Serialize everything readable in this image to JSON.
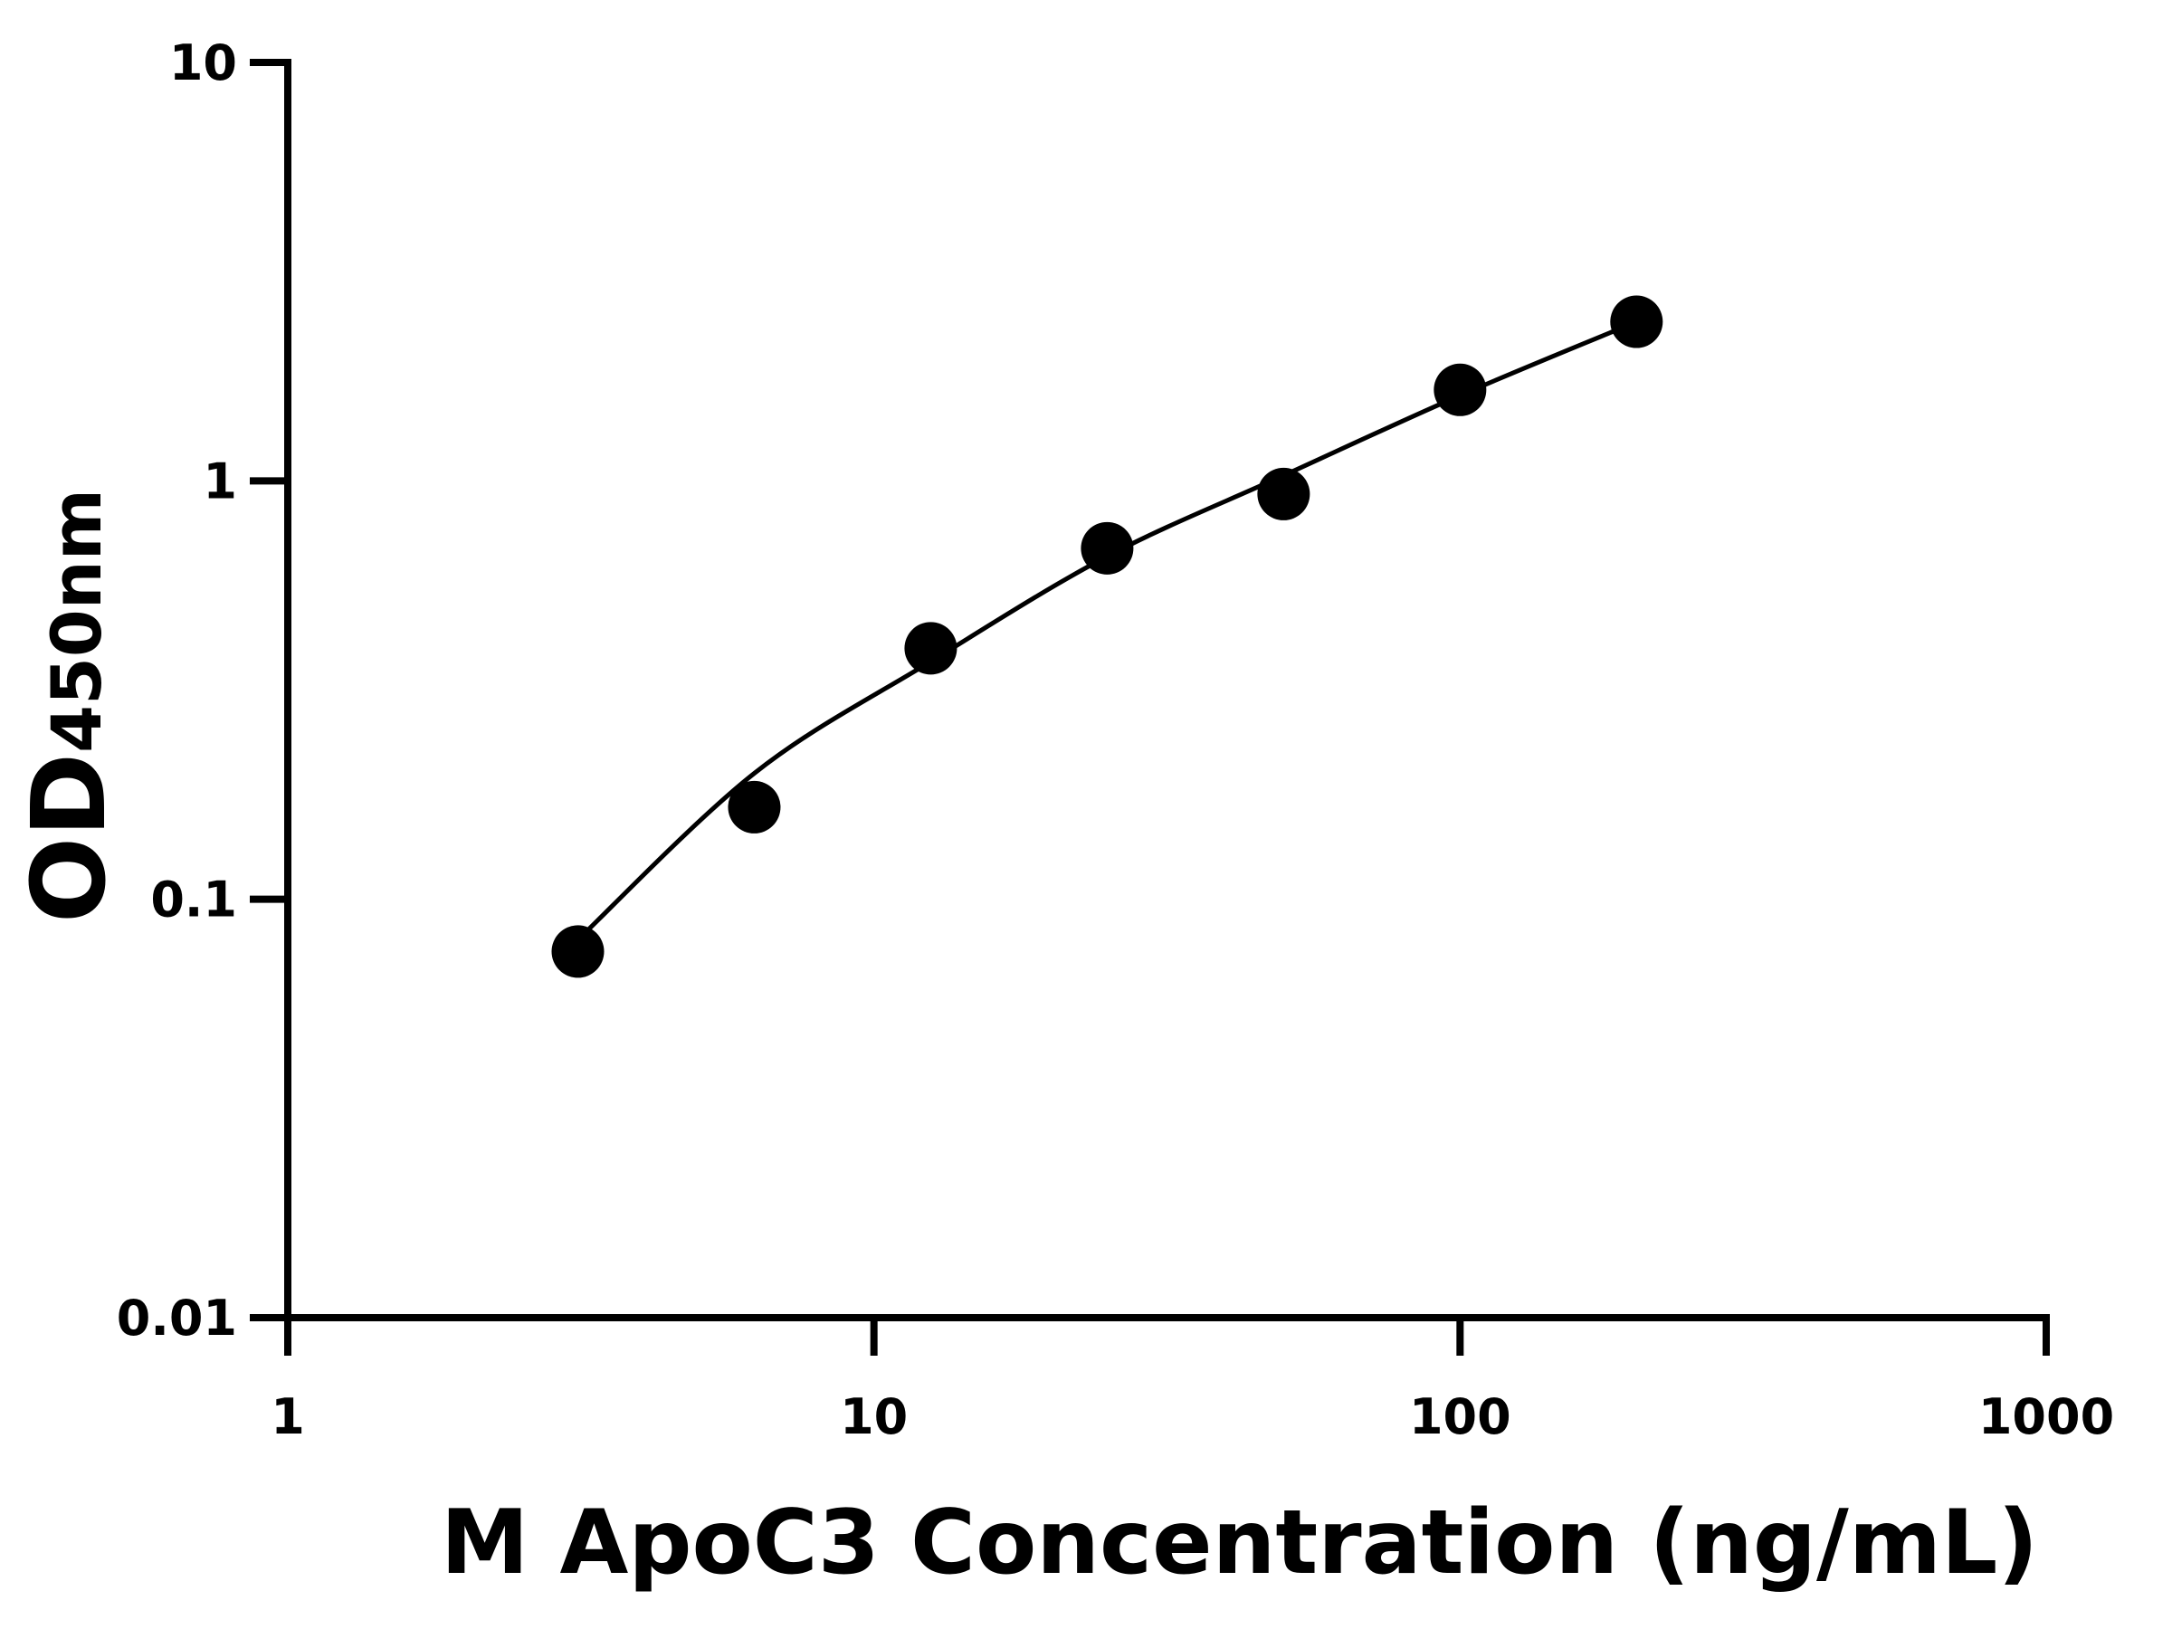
{
  "chart_data": {
    "type": "scatter",
    "x_label": "M ApoC3 Concentration (ng/mL)",
    "y_label": "OD",
    "y_label_subscript": "450nm",
    "x_scale": "log",
    "y_scale": "log",
    "xlim": [
      1,
      1000
    ],
    "xticks": [
      1,
      10,
      100,
      1000
    ],
    "ylim": [
      0.01,
      10
    ],
    "yticks": [
      0.01,
      0.1,
      1,
      10
    ],
    "color": "#000000",
    "x": [
      3.125,
      6.25,
      12.5,
      25,
      50,
      100,
      200
    ],
    "values": [
      0.075,
      0.166,
      0.398,
      0.69,
      0.93,
      1.65,
      2.4
    ],
    "fit_curve": {
      "x": [
        3.125,
        6.25,
        12.5,
        25,
        50,
        100,
        200
      ],
      "values": [
        0.08,
        0.2,
        0.37,
        0.66,
        1.03,
        1.6,
        2.4
      ]
    }
  }
}
